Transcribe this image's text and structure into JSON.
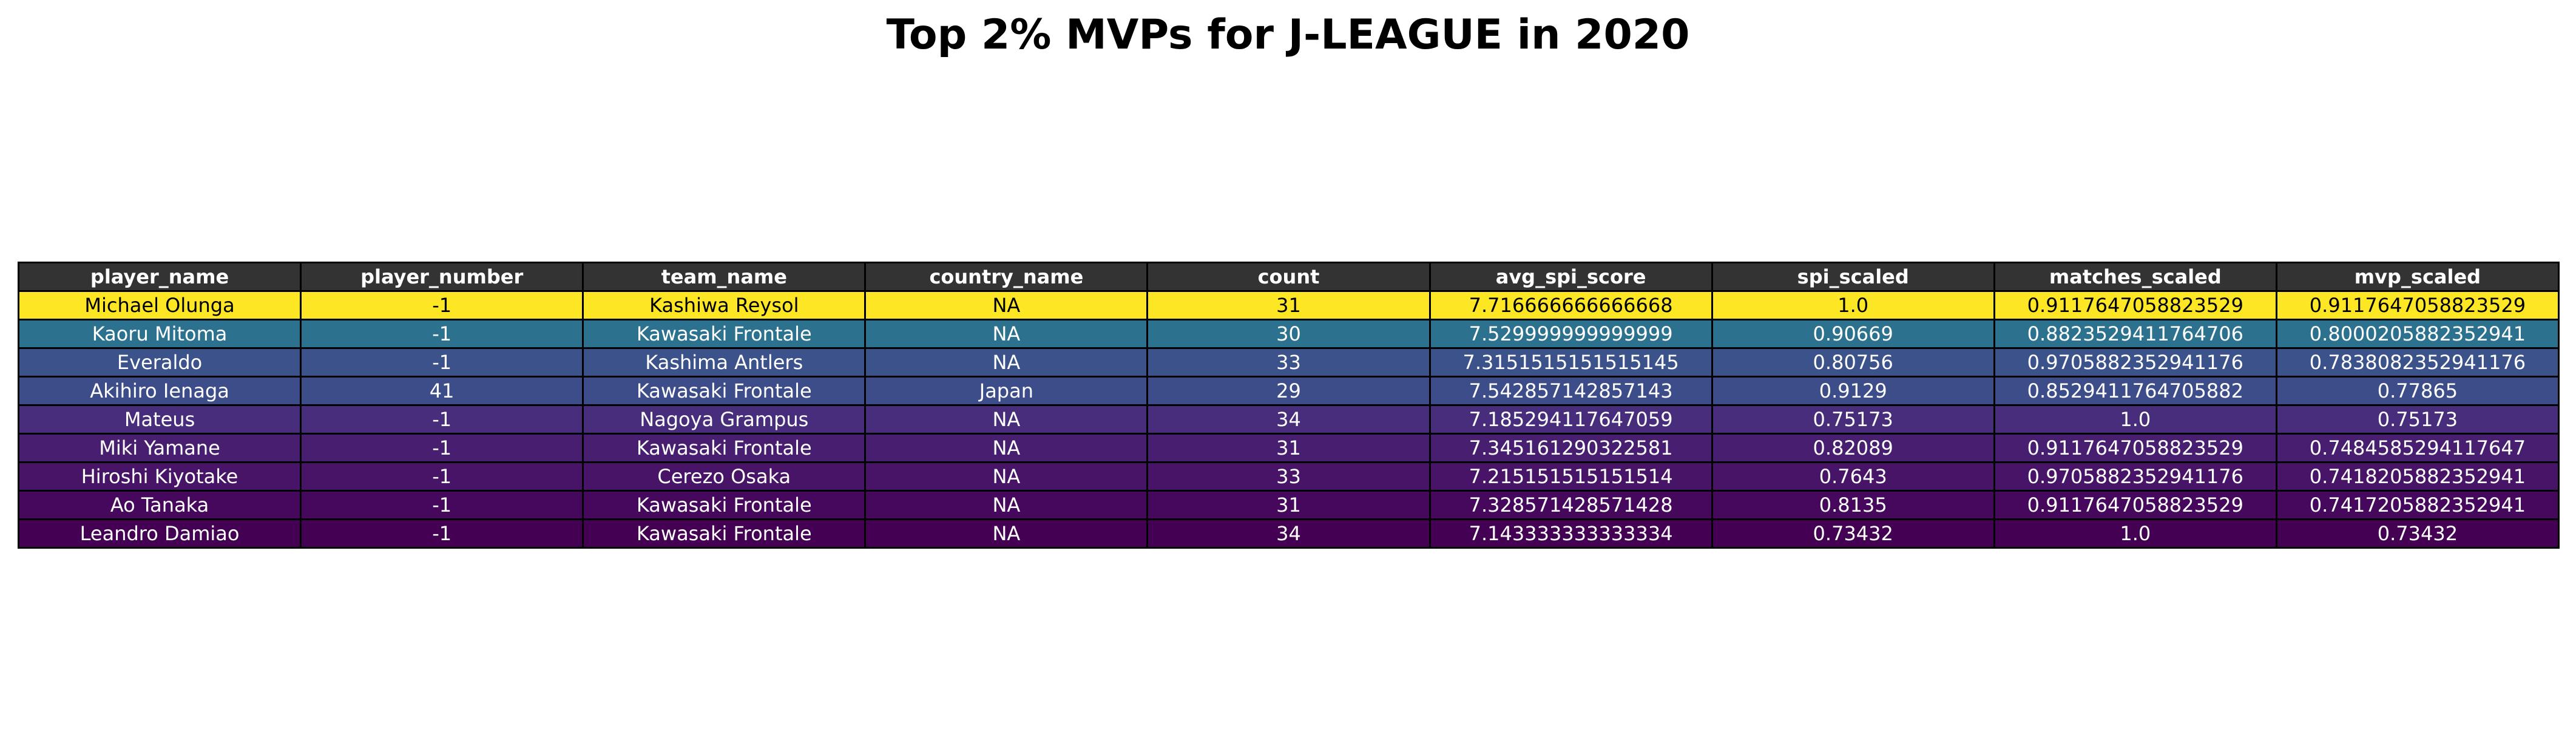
{
  "title": "Top 2% MVPs for J-LEAGUE in 2020",
  "colors": {
    "header_bg": "#333333",
    "header_text": "#ffffff",
    "dark_row_text": "#ffffff",
    "light_row_text": "#000000"
  },
  "chart_data": {
    "type": "table",
    "columns": [
      "player_name",
      "player_number",
      "team_name",
      "country_name",
      "count",
      "avg_spi_score",
      "spi_scaled",
      "matches_scaled",
      "mvp_scaled"
    ],
    "rows": [
      {
        "color": "#fde725",
        "cells": [
          "Michael Olunga",
          "-1",
          "Kashiwa Reysol",
          "NA",
          "31",
          "7.716666666666668",
          "1.0",
          "0.9117647058823529",
          "0.9117647058823529"
        ]
      },
      {
        "color": "#2c728e",
        "cells": [
          "Kaoru Mitoma",
          "-1",
          "Kawasaki Frontale",
          "NA",
          "30",
          "7.529999999999999",
          "0.90669",
          "0.8823529411764706",
          "0.8000205882352941"
        ]
      },
      {
        "color": "#3b528b",
        "cells": [
          "Everaldo",
          "-1",
          "Kashima Antlers",
          "NA",
          "33",
          "7.3151515151515145",
          "0.80756",
          "0.9705882352941176",
          "0.7838082352941176"
        ]
      },
      {
        "color": "#3d4d8a",
        "cells": [
          "Akihiro Ienaga",
          "41",
          "Kawasaki Frontale",
          "Japan",
          "29",
          "7.542857142857143",
          "0.9129",
          "0.8529411764705882",
          "0.77865"
        ]
      },
      {
        "color": "#472d7b",
        "cells": [
          "Mateus",
          "-1",
          "Nagoya Grampus",
          "NA",
          "34",
          "7.185294117647059",
          "0.75173",
          "1.0",
          "0.75173"
        ]
      },
      {
        "color": "#481f70",
        "cells": [
          "Miki Yamane",
          "-1",
          "Kawasaki Frontale",
          "NA",
          "31",
          "7.345161290322581",
          "0.82089",
          "0.9117647058823529",
          "0.7484585294117647"
        ]
      },
      {
        "color": "#481467",
        "cells": [
          "Hiroshi Kiyotake",
          "-1",
          "Cerezo Osaka",
          "NA",
          "33",
          "7.215151515151514",
          "0.7643",
          "0.9705882352941176",
          "0.7418205882352941"
        ]
      },
      {
        "color": "#46085c",
        "cells": [
          "Ao Tanaka",
          "-1",
          "Kawasaki Frontale",
          "NA",
          "31",
          "7.328571428571428",
          "0.8135",
          "0.9117647058823529",
          "0.7417205882352941"
        ]
      },
      {
        "color": "#440154",
        "cells": [
          "Leandro Damiao",
          "-1",
          "Kawasaki Frontale",
          "NA",
          "34",
          "7.143333333333334",
          "0.73432",
          "1.0",
          "0.73432"
        ]
      }
    ]
  }
}
